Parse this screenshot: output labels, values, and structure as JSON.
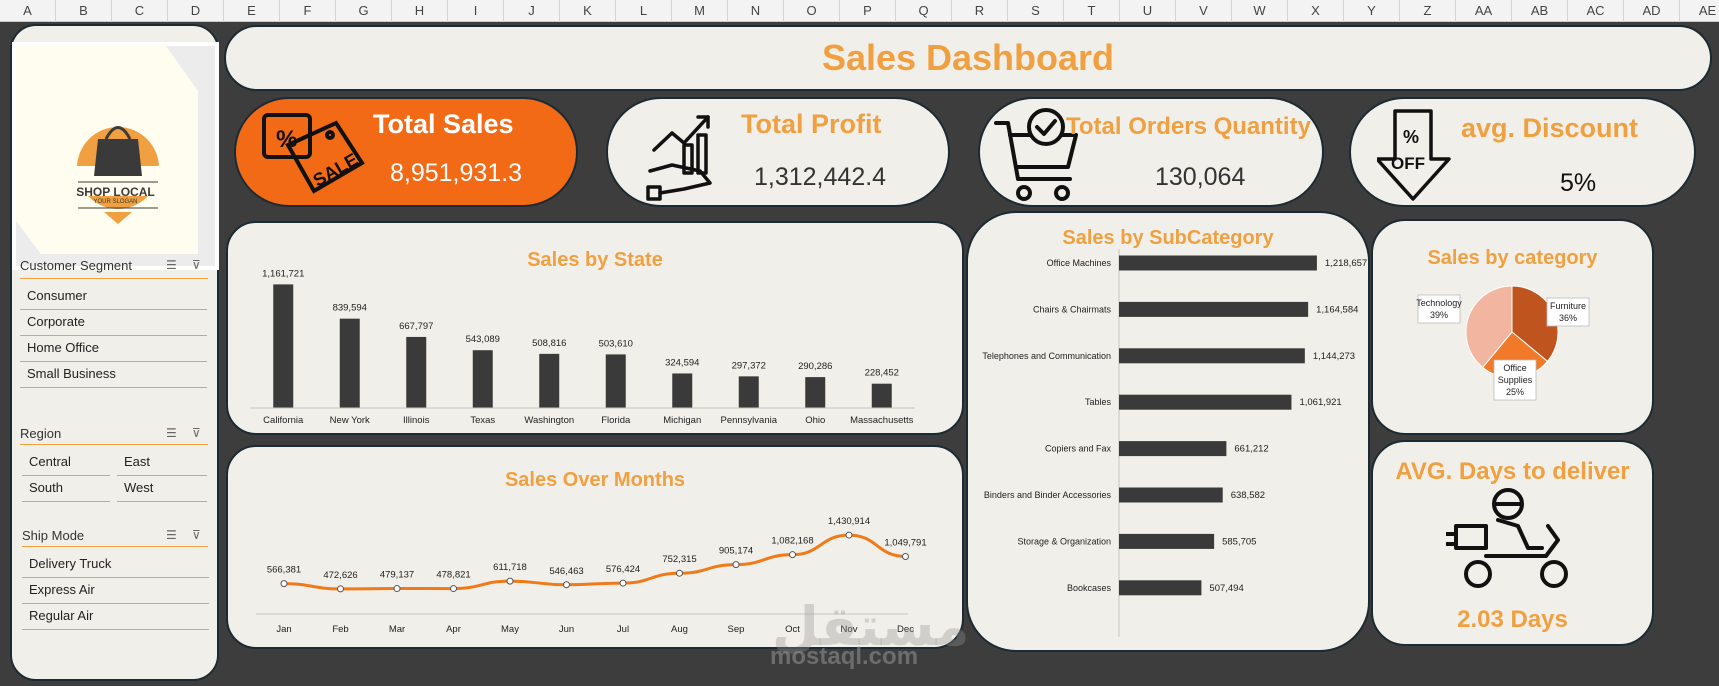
{
  "columns": [
    "A",
    "B",
    "C",
    "D",
    "E",
    "F",
    "G",
    "H",
    "I",
    "J",
    "K",
    "L",
    "M",
    "N",
    "O",
    "P",
    "Q",
    "R",
    "S",
    "T",
    "U",
    "V",
    "W",
    "X",
    "Y",
    "Z",
    "AA",
    "AB",
    "AC",
    "AD",
    "AE"
  ],
  "dashboard_title": "Sales Dashboard",
  "logo": {
    "name": "SHOP LOCAL",
    "slogan": "YOUR SLOGAN"
  },
  "kpis": {
    "sales": {
      "title": "Total Sales",
      "value": "8,951,931.3"
    },
    "profit": {
      "title": "Total Profit",
      "value": "1,312,442.4"
    },
    "orders": {
      "title": "Total Orders Quantity",
      "value": "130,064"
    },
    "discount": {
      "title": "avg. Discount",
      "value": "5%"
    }
  },
  "slicers": {
    "segment": {
      "title": "Customer Segment",
      "items": [
        "Consumer",
        "Corporate",
        "Home Office",
        "Small Business"
      ]
    },
    "region": {
      "title": "Region",
      "items": [
        "Central",
        "East",
        "South",
        "West"
      ]
    },
    "ship": {
      "title": "Ship Mode",
      "items": [
        "Delivery Truck",
        "Express Air",
        "Regular Air"
      ]
    }
  },
  "delivery": {
    "title": "AVG. Days to deliver",
    "value": "2.03 Days"
  },
  "watermark": {
    "arabic": "مستقل",
    "latin": "mostaql.com"
  },
  "colors": {
    "accent": "#f0a040",
    "kpi_highlight": "#f26a16",
    "bar": "#3a3a3a",
    "line": "#f07a1a",
    "bg": "#3d3d3d",
    "panel": "#f1efe9"
  },
  "chart_data": [
    {
      "type": "bar",
      "title": "Sales by State",
      "categories": [
        "California",
        "New York",
        "Illinois",
        "Texas",
        "Washington",
        "Florida",
        "Michigan",
        "Pennsylvania",
        "Ohio",
        "Massachusetts"
      ],
      "values": [
        1161721,
        839594,
        667797,
        543089,
        508816,
        503610,
        324594,
        297372,
        290286,
        228452
      ],
      "labels": [
        "1,161,721",
        "839,594",
        "667,797",
        "543,089",
        "508,816",
        "503,610",
        "324,594",
        "297,372",
        "290,286",
        "228,452"
      ],
      "ylim": [
        0,
        1250000
      ]
    },
    {
      "type": "line",
      "title": "Sales Over Months",
      "categories": [
        "Jan",
        "Feb",
        "Mar",
        "Apr",
        "May",
        "Jun",
        "Jul",
        "Aug",
        "Sep",
        "Oct",
        "Nov",
        "Dec"
      ],
      "values": [
        566381,
        472626,
        479137,
        478821,
        611718,
        546463,
        576424,
        752315,
        905174,
        1082168,
        1430914,
        1049791
      ],
      "labels": [
        "566,381",
        "472,626",
        "479,137",
        "478,821",
        "611,718",
        "546,463",
        "576,424",
        "752,315",
        "905,174",
        "1,082,168",
        "1,430,914",
        "1,049,791"
      ]
    },
    {
      "type": "bar",
      "title": "Sales by SubCategory",
      "orientation": "horizontal",
      "categories": [
        "Office Machines",
        "Chairs & Chairmats",
        "Telephones and Communication",
        "Tables",
        "Copiers and Fax",
        "Binders and Binder Accessories",
        "Storage & Organization",
        "Bookcases"
      ],
      "values": [
        1218657,
        1164584,
        1144273,
        1061921,
        661212,
        638582,
        585705,
        507494
      ],
      "labels": [
        "1,218,657",
        "1,164,584",
        "1,144,273",
        "1,061,921",
        "661,212",
        "638,582",
        "585,705",
        "507,494"
      ]
    },
    {
      "type": "pie",
      "title": "Sales by category",
      "slices": [
        {
          "name": "Furniture",
          "value": 36,
          "label": "36%",
          "color": "#c0541e"
        },
        {
          "name": "Office Supplies",
          "value": 25,
          "label": "25%",
          "color": "#f07a2a"
        },
        {
          "name": "Technology",
          "value": 39,
          "label": "39%",
          "color": "#f2b6a0"
        }
      ]
    }
  ]
}
